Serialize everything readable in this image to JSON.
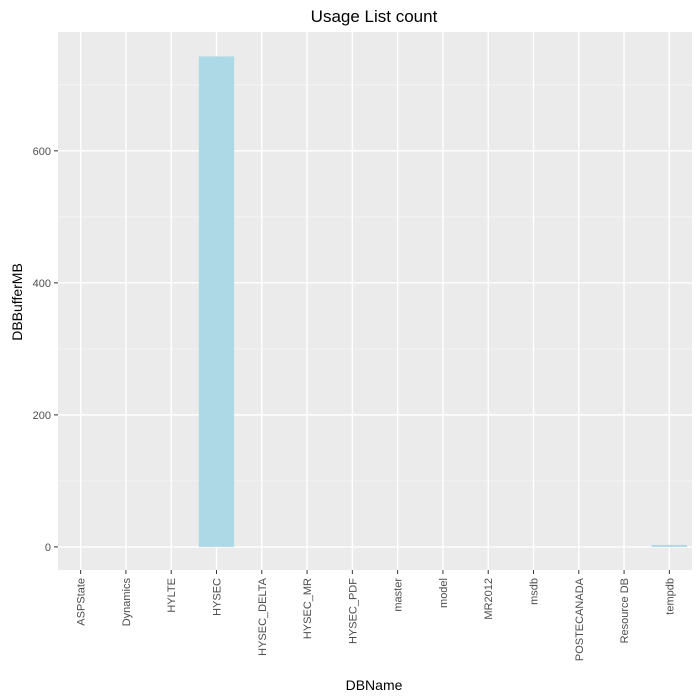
{
  "chart_data": {
    "type": "bar",
    "title": "Usage List count",
    "xlabel": "DBName",
    "ylabel": "DBBufferMB",
    "categories": [
      "ASPState",
      "Dynamics",
      "HYLTE",
      "HYSEC",
      "HYSEC_DELTA",
      "HYSEC_MR",
      "HYSEC_PDF",
      "master",
      "model",
      "MR2012",
      "msdb",
      "POSTECANADA",
      "Resource DB",
      "tempdb"
    ],
    "values": [
      0,
      0,
      0,
      743,
      0,
      0,
      0,
      0,
      0,
      0,
      0,
      0,
      0,
      3
    ],
    "ylim": [
      -35,
      780
    ],
    "yticks": [
      0,
      200,
      400,
      600
    ],
    "grid": true,
    "colors": {
      "bar": "#add8e6",
      "panel": "#ebebeb",
      "grid_major": "#ffffff",
      "tick_text": "#4d4d4d"
    }
  }
}
